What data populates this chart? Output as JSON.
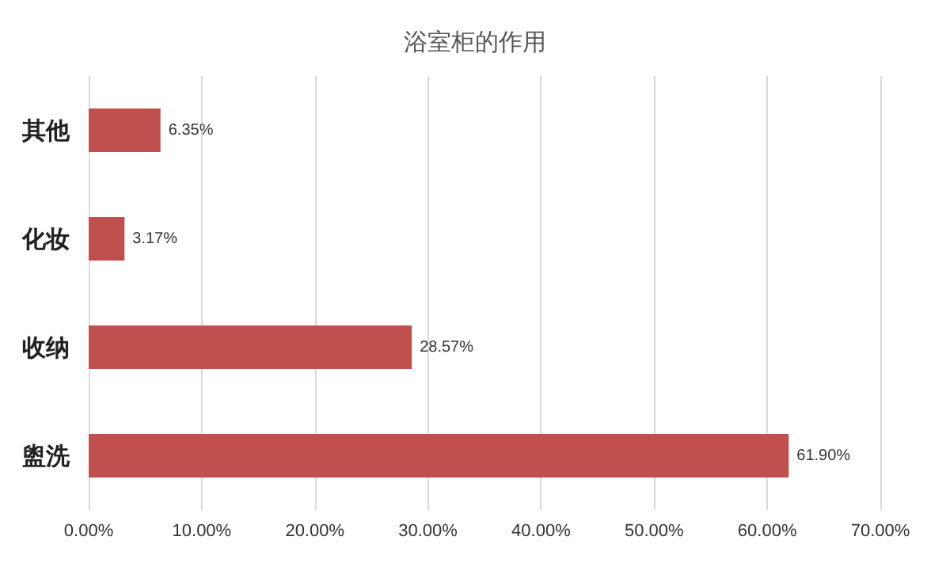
{
  "chart_data": {
    "type": "bar",
    "orientation": "horizontal",
    "title": "浴室柜的作用",
    "categories": [
      "其他",
      "化妆",
      "收纳",
      "盥洗"
    ],
    "values": [
      6.35,
      3.17,
      28.57,
      61.9
    ],
    "value_labels": [
      "6.35%",
      "3.17%",
      "28.57%",
      "61.90%"
    ],
    "color": "#c0504d",
    "xlim": [
      0,
      70
    ],
    "xticks": [
      {
        "value": 0,
        "label": "0.00%"
      },
      {
        "value": 10,
        "label": "10.00%"
      },
      {
        "value": 20,
        "label": "20.00%"
      },
      {
        "value": 30,
        "label": "30.00%"
      },
      {
        "value": 40,
        "label": "40.00%"
      },
      {
        "value": 50,
        "label": "50.00%"
      },
      {
        "value": 60,
        "label": "60.00%"
      },
      {
        "value": 70,
        "label": "70.00%"
      }
    ],
    "grid": "x"
  }
}
